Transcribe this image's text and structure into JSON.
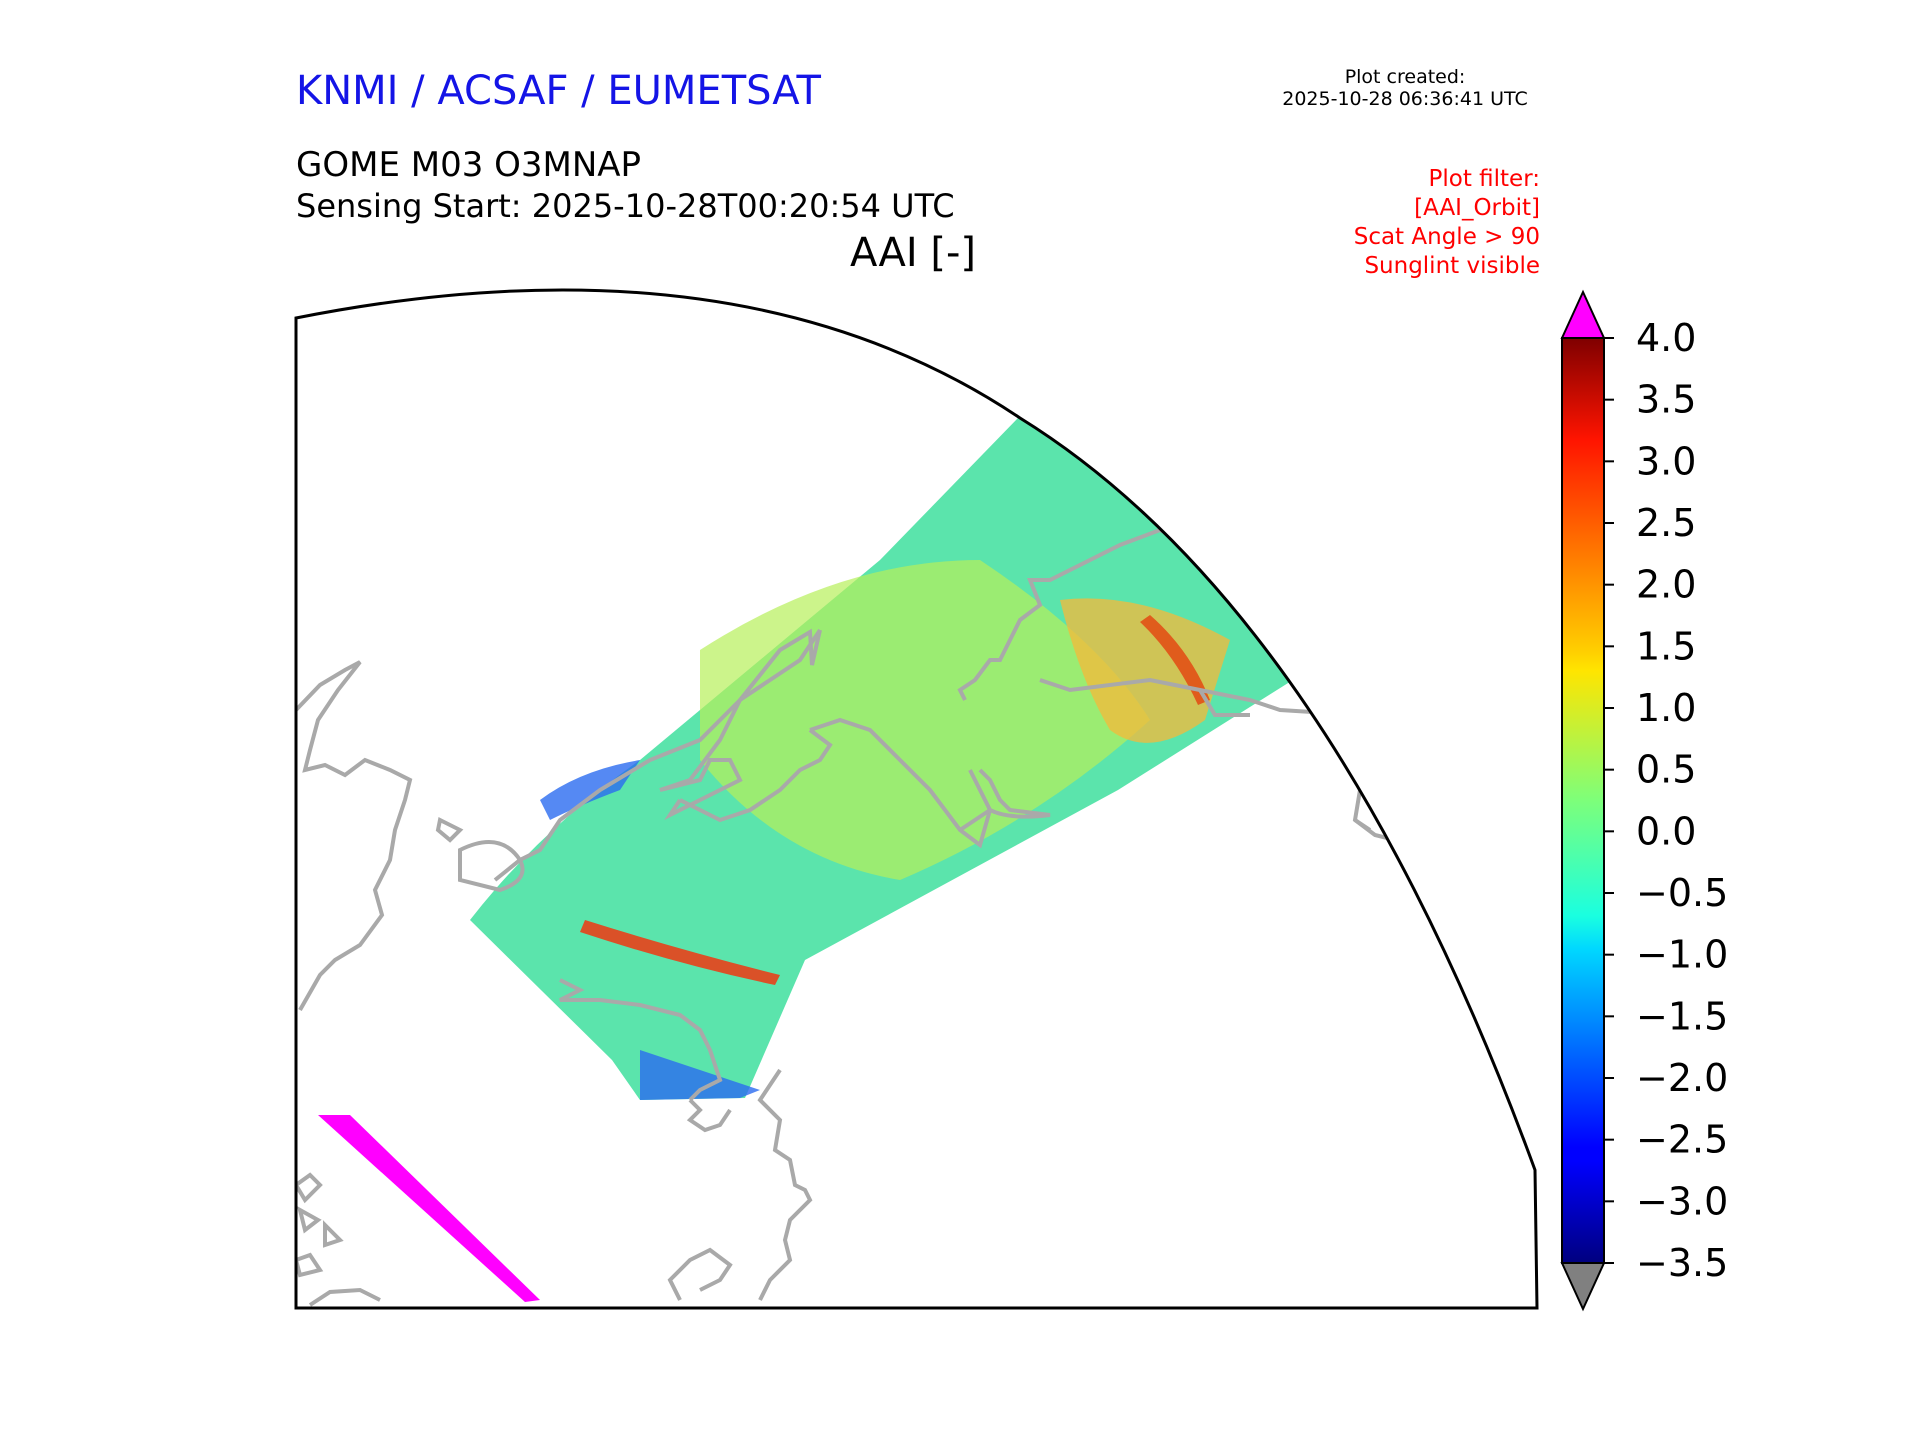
{
  "header": {
    "organization": "KNMI / ACSAF / EUMETSAT",
    "created_label": "Plot created:",
    "created_time": "2025-10-28 06:36:41 UTC",
    "product": "GOME M03 O3MNAP",
    "sensing_start": "Sensing Start: 2025-10-28T00:20:54 UTC",
    "variable": "AAI [-]"
  },
  "filters": {
    "lines": [
      "Plot filter:",
      "[AAI_Orbit]",
      "Scat Angle > 90",
      "Sunglint visible"
    ]
  },
  "colorbar": {
    "min": -3.5,
    "max": 4.0,
    "ticks": [
      "4.0",
      "3.5",
      "3.0",
      "2.5",
      "2.0",
      "1.5",
      "1.0",
      "0.5",
      "0.0",
      "−0.5",
      "−1.0",
      "−1.5",
      "−2.0",
      "−2.5",
      "−3.0",
      "−3.5"
    ],
    "colormap": "jet",
    "over_color": "#ff00ff",
    "under_color": "#808080"
  },
  "colors": {
    "coastline": "#a9a9a9",
    "frame": "#000000",
    "off_scale_swath": "#ff00ff"
  }
}
